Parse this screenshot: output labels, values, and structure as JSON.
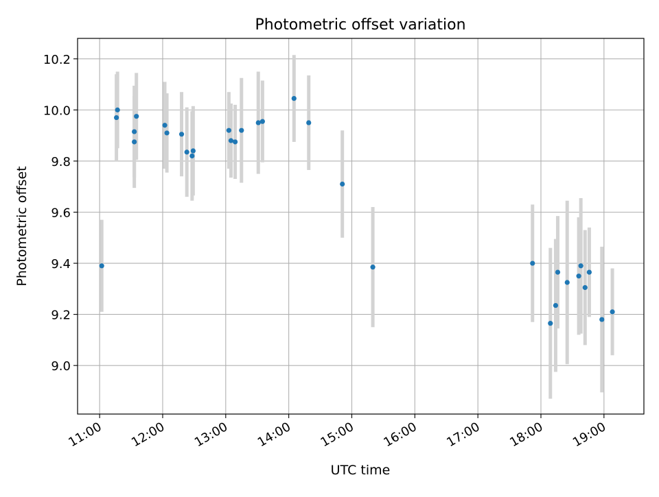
{
  "chart_data": {
    "type": "scatter",
    "title": "Photometric offset variation",
    "xlabel": "UTC time",
    "ylabel": "Photometric offset",
    "x_ticks": [
      "11:00",
      "12:00",
      "13:00",
      "14:00",
      "15:00",
      "16:00",
      "17:00",
      "18:00",
      "19:00"
    ],
    "y_ticks": [
      "9.0",
      "9.2",
      "9.4",
      "9.6",
      "9.8",
      "10.0",
      "10.2"
    ],
    "xlim": [
      "10:39",
      "19:38"
    ],
    "ylim": [
      8.81,
      10.28
    ],
    "grid": true,
    "colors": {
      "point": "#1f77b4",
      "errorbar": "#d3d3d3",
      "grid": "#b0b0b0"
    },
    "points": [
      {
        "x": "11:02",
        "y": 9.39,
        "err": 0.18
      },
      {
        "x": "11:16",
        "y": 9.97,
        "err": 0.17
      },
      {
        "x": "11:17",
        "y": 10.0,
        "err": 0.15
      },
      {
        "x": "11:33",
        "y": 9.915,
        "err": 0.18
      },
      {
        "x": "11:33",
        "y": 9.875,
        "err": 0.18
      },
      {
        "x": "11:35",
        "y": 9.975,
        "err": 0.17
      },
      {
        "x": "12:02",
        "y": 9.94,
        "err": 0.17
      },
      {
        "x": "12:04",
        "y": 9.91,
        "err": 0.155
      },
      {
        "x": "12:18",
        "y": 9.905,
        "err": 0.165
      },
      {
        "x": "12:23",
        "y": 9.835,
        "err": 0.175
      },
      {
        "x": "12:28",
        "y": 9.82,
        "err": 0.175
      },
      {
        "x": "12:29",
        "y": 9.84,
        "err": 0.175
      },
      {
        "x": "13:03",
        "y": 9.92,
        "err": 0.15
      },
      {
        "x": "13:05",
        "y": 9.88,
        "err": 0.145
      },
      {
        "x": "13:09",
        "y": 9.875,
        "err": 0.145
      },
      {
        "x": "13:15",
        "y": 9.92,
        "err": 0.205
      },
      {
        "x": "13:31",
        "y": 9.95,
        "err": 0.2
      },
      {
        "x": "13:35",
        "y": 9.955,
        "err": 0.16
      },
      {
        "x": "14:05",
        "y": 10.045,
        "err": 0.17
      },
      {
        "x": "14:19",
        "y": 9.95,
        "err": 0.185
      },
      {
        "x": "14:51",
        "y": 9.71,
        "err": 0.21
      },
      {
        "x": "15:20",
        "y": 9.385,
        "err": 0.235
      },
      {
        "x": "17:52",
        "y": 9.4,
        "err": 0.23
      },
      {
        "x": "18:09",
        "y": 9.165,
        "err": 0.295
      },
      {
        "x": "18:14",
        "y": 9.235,
        "err": 0.26
      },
      {
        "x": "18:16",
        "y": 9.365,
        "err": 0.22
      },
      {
        "x": "18:25",
        "y": 9.325,
        "err": 0.32
      },
      {
        "x": "18:36",
        "y": 9.35,
        "err": 0.23
      },
      {
        "x": "18:38",
        "y": 9.39,
        "err": 0.265
      },
      {
        "x": "18:42",
        "y": 9.305,
        "err": 0.225
      },
      {
        "x": "18:46",
        "y": 9.365,
        "err": 0.175
      },
      {
        "x": "18:58",
        "y": 9.18,
        "err": 0.285
      },
      {
        "x": "19:08",
        "y": 9.21,
        "err": 0.17
      }
    ]
  }
}
